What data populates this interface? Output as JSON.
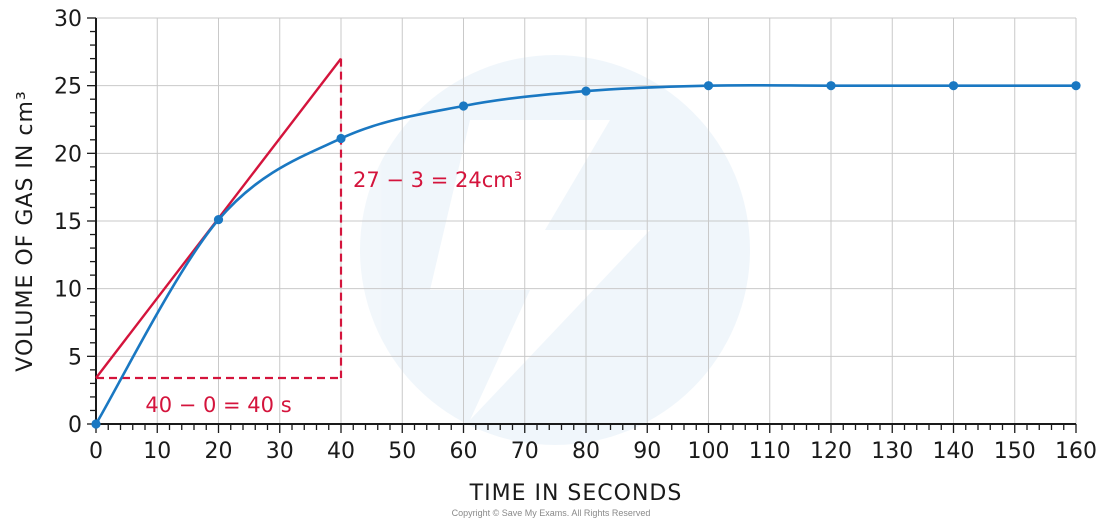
{
  "chart_data": {
    "type": "line",
    "xlabel": "TIME IN SECONDS",
    "ylabel": "VOLUME OF GAS IN cm³",
    "xlim": [
      0,
      160
    ],
    "ylim": [
      0,
      30
    ],
    "x_ticks": [
      0,
      10,
      20,
      30,
      40,
      50,
      60,
      70,
      80,
      90,
      100,
      110,
      120,
      130,
      140,
      150,
      160
    ],
    "y_ticks": [
      0,
      5,
      10,
      15,
      20,
      25,
      30
    ],
    "grid": true,
    "series": [
      {
        "color": "#1a78c2",
        "x": [
          0,
          20,
          40,
          60,
          80,
          100,
          120,
          140,
          160
        ],
        "values": [
          0,
          15.1,
          21.1,
          23.5,
          24.6,
          25,
          25,
          25,
          25
        ]
      }
    ],
    "tangent": {
      "color": "#d4143c",
      "x": [
        0,
        40
      ],
      "values": [
        3.4,
        27
      ]
    },
    "annotations": {
      "rise_label": "27 − 3 = 24cm³",
      "run_label": "40 − 0 = 40 s",
      "color": "#d4143c"
    },
    "copyright": "Copyright © Save My Exams. All Rights Reserved"
  }
}
